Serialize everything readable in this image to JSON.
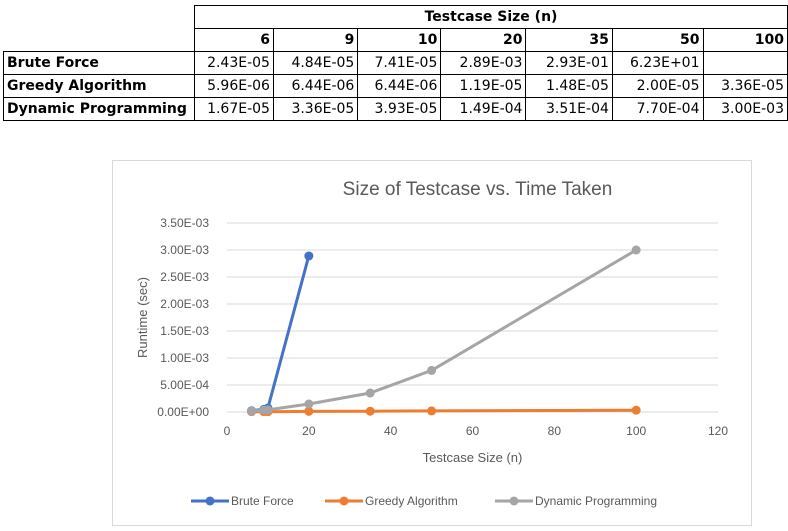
{
  "table": {
    "caption": "Testcase Size (n)",
    "sizes": [
      "6",
      "9",
      "10",
      "20",
      "35",
      "50",
      "100"
    ],
    "rows": [
      {
        "label": "Brute Force",
        "values": [
          "2.43E-05",
          "4.84E-05",
          "7.41E-05",
          "2.89E-03",
          "2.93E-01",
          "6.23E+01",
          ""
        ]
      },
      {
        "label": "Greedy Algorithm",
        "values": [
          "5.96E-06",
          "6.44E-06",
          "6.44E-06",
          "1.19E-05",
          "1.48E-05",
          "2.00E-05",
          "3.36E-05"
        ]
      },
      {
        "label": "Dynamic Programming",
        "values": [
          "1.67E-05",
          "3.36E-05",
          "3.93E-05",
          "1.49E-04",
          "3.51E-04",
          "7.70E-04",
          "3.00E-03"
        ]
      }
    ]
  },
  "chart_data": {
    "type": "scatter",
    "title": "Size of Testcase vs. Time Taken",
    "xlabel": "Testcase Size (n)",
    "ylabel": "Runtime (sec)",
    "xlim": [
      0,
      120
    ],
    "ylim": [
      0,
      0.0035
    ],
    "xticks": [
      0,
      20,
      40,
      60,
      80,
      100,
      120
    ],
    "xtick_labels": [
      "0",
      "20",
      "40",
      "60",
      "80",
      "100",
      "120"
    ],
    "yticks": [
      0,
      0.0005,
      0.001,
      0.0015,
      0.002,
      0.0025,
      0.003,
      0.0035
    ],
    "ytick_labels": [
      "0.00E+00",
      "5.00E-04",
      "1.00E-03",
      "1.50E-03",
      "2.00E-03",
      "2.50E-03",
      "3.00E-03",
      "3.50E-03"
    ],
    "grid": true,
    "legend_position": "bottom",
    "series": [
      {
        "name": "Brute Force",
        "color": "#4472c4",
        "x": [
          6,
          9,
          10,
          20
        ],
        "y": [
          2.43e-05,
          4.84e-05,
          7.41e-05,
          0.00289
        ]
      },
      {
        "name": "Greedy Algorithm",
        "color": "#ed7d31",
        "x": [
          6,
          9,
          10,
          20,
          35,
          50,
          100
        ],
        "y": [
          5.96e-06,
          6.44e-06,
          6.44e-06,
          1.19e-05,
          1.48e-05,
          2e-05,
          3.36e-05
        ]
      },
      {
        "name": "Dynamic Programming",
        "color": "#a5a5a5",
        "x": [
          6,
          9,
          10,
          20,
          35,
          50,
          100
        ],
        "y": [
          1.67e-05,
          3.36e-05,
          3.93e-05,
          0.000149,
          0.000351,
          0.00077,
          0.003
        ]
      }
    ]
  }
}
